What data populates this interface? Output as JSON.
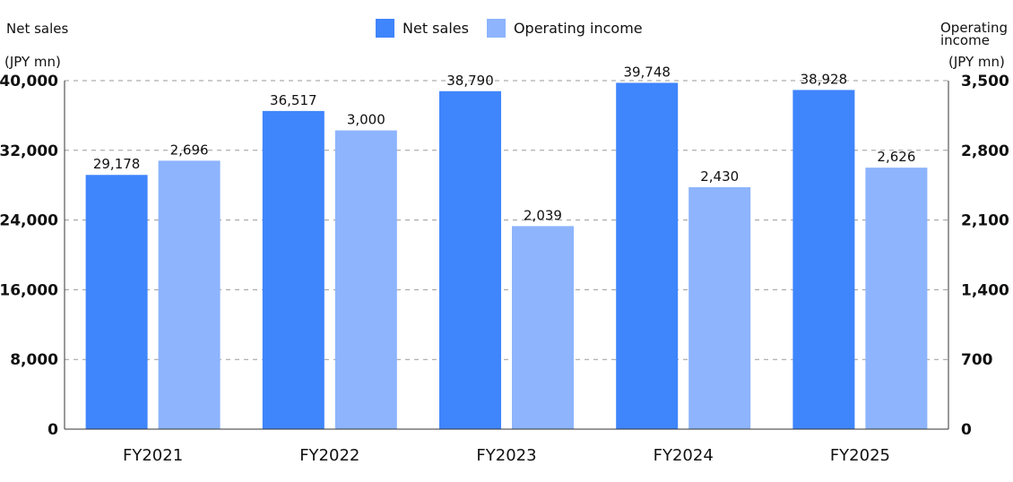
{
  "chart_data": {
    "type": "bar",
    "categories": [
      "FY2021",
      "FY2022",
      "FY2023",
      "FY2024",
      "FY2025"
    ],
    "series": [
      {
        "name": "Net sales",
        "axis": "left",
        "color": "#3f85fc",
        "values": [
          29178,
          36517,
          38790,
          39748,
          38928
        ],
        "labels": [
          "29,178",
          "36,517",
          "38,790",
          "39,748",
          "38,928"
        ]
      },
      {
        "name": "Operating income",
        "axis": "right",
        "color": "#8db4fd",
        "values": [
          2696,
          3000,
          2039,
          2430,
          2626
        ],
        "labels": [
          "2,696",
          "3,000",
          "2,039",
          "2,430",
          "2,626"
        ]
      }
    ],
    "left_axis": {
      "title": "Net sales",
      "unit": "(JPY mn)",
      "ylim": [
        0,
        40000
      ],
      "ticks": [
        0,
        8000,
        16000,
        24000,
        32000,
        40000
      ],
      "tick_labels": [
        "0",
        "8,000",
        "16,000",
        "24,000",
        "32,000",
        "40,000"
      ]
    },
    "right_axis": {
      "title_line1": "Operating",
      "title_line2": "income",
      "unit": "(JPY mn)",
      "ylim": [
        0,
        3500
      ],
      "ticks": [
        0,
        700,
        1400,
        2100,
        2800,
        3500
      ],
      "tick_labels": [
        "0",
        "700",
        "1,400",
        "2,100",
        "2,800",
        "3,500"
      ]
    },
    "grid": "dashed horizontal",
    "legend_position": "top-center"
  }
}
